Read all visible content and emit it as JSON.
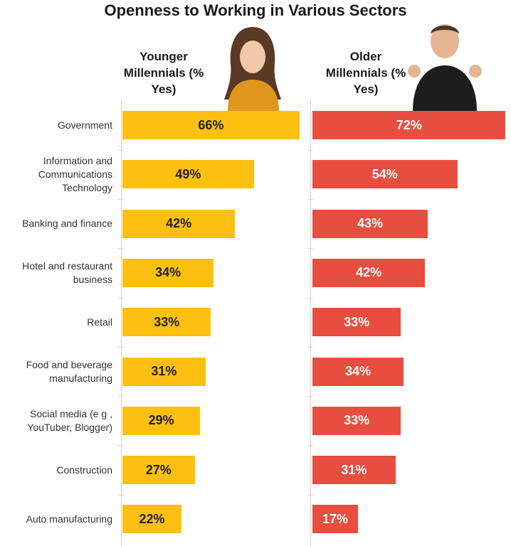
{
  "chart_data": {
    "type": "bar",
    "orientation": "horizontal",
    "title": "Openness to Working in Various Sectors",
    "categories": [
      "Government",
      "Information and Communications Technology",
      "Banking and finance",
      "Hotel and restaurant business",
      "Retail",
      "Food and beverage manufacturing",
      "Social media (e g , YouTuber, Blogger)",
      "Construction",
      "Auto manufacturing"
    ],
    "series": [
      {
        "name": "Younger Millennials (% Yes)",
        "color": "#fdc010",
        "text_color": "#222222",
        "values": [
          66,
          49,
          42,
          34,
          33,
          31,
          29,
          27,
          22
        ],
        "value_labels": [
          "66%",
          "49%",
          "42%",
          "34%",
          "33%",
          "31%",
          "29%",
          "27%",
          "22%"
        ]
      },
      {
        "name": "Older Millennials (% Yes)",
        "color": "#e84e3f",
        "text_color": "#ffffff",
        "values": [
          72,
          54,
          43,
          42,
          33,
          34,
          33,
          31,
          17
        ],
        "value_labels": [
          "72%",
          "54%",
          "43%",
          "42%",
          "33%",
          "34%",
          "33%",
          "31%",
          "17%"
        ]
      }
    ]
  }
}
